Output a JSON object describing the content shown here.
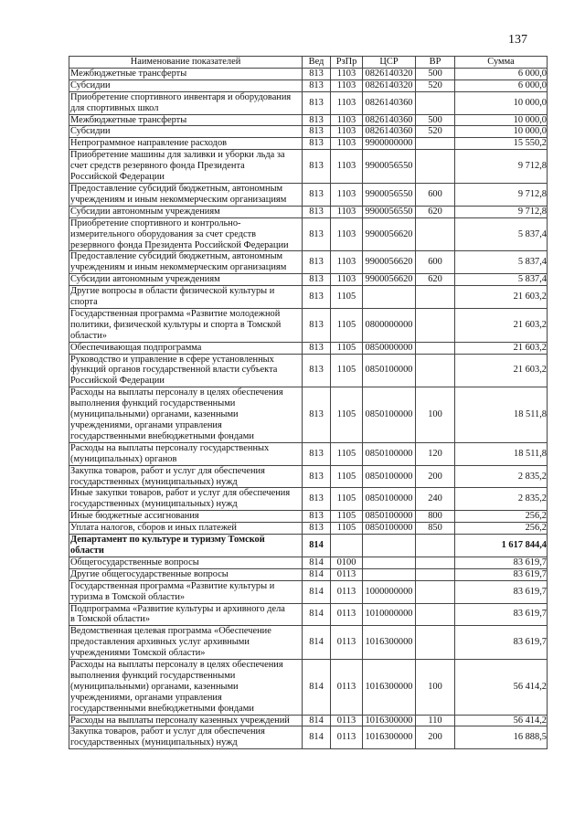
{
  "page_number": "137",
  "headers": [
    "Наименование показателей",
    "Вед",
    "РзПр",
    "ЦСР",
    "ВР",
    "Сумма"
  ],
  "rows": [
    {
      "name": "Межбюджетные трансферты",
      "ved": "813",
      "rz": "1103",
      "csr": "0826140320",
      "vr": "500",
      "sum": "6 000,0"
    },
    {
      "name": "Субсидии",
      "ved": "813",
      "rz": "1103",
      "csr": "0826140320",
      "vr": "520",
      "sum": "6 000,0"
    },
    {
      "name": "Приобретение спортивного инвентаря и оборудования\nдля спортивных школ",
      "ved": "813",
      "rz": "1103",
      "csr": "0826140360",
      "vr": "",
      "sum": "10 000,0"
    },
    {
      "name": "Межбюджетные трансферты",
      "ved": "813",
      "rz": "1103",
      "csr": "0826140360",
      "vr": "500",
      "sum": "10 000,0"
    },
    {
      "name": "Субсидии",
      "ved": "813",
      "rz": "1103",
      "csr": "0826140360",
      "vr": "520",
      "sum": "10 000,0"
    },
    {
      "name": "Непрограммное направление расходов",
      "ved": "813",
      "rz": "1103",
      "csr": "9900000000",
      "vr": "",
      "sum": "15 550,2"
    },
    {
      "name": "Приобретение машины для заливки и уборки льда за\nсчет средств резервного фонда Президента\nРоссийской Федерации",
      "ved": "813",
      "rz": "1103",
      "csr": "9900056550",
      "vr": "",
      "sum": "9 712,8"
    },
    {
      "name": "Предоставление субсидий бюджетным, автономным\nучреждениям и иным некоммерческим организациям",
      "ved": "813",
      "rz": "1103",
      "csr": "9900056550",
      "vr": "600",
      "sum": "9 712,8"
    },
    {
      "name": "Субсидии автономным учреждениям",
      "ved": "813",
      "rz": "1103",
      "csr": "9900056550",
      "vr": "620",
      "sum": "9 712,8"
    },
    {
      "name": "Приобретение спортивного и контрольно-\nизмерительного оборудования за счет средств\nрезервного фонда Президента Российской Федерации",
      "ved": "813",
      "rz": "1103",
      "csr": "9900056620",
      "vr": "",
      "sum": "5 837,4"
    },
    {
      "name": "Предоставление субсидий бюджетным, автономным\nучреждениям и иным некоммерческим организациям",
      "ved": "813",
      "rz": "1103",
      "csr": "9900056620",
      "vr": "600",
      "sum": "5 837,4"
    },
    {
      "name": "Субсидии автономным учреждениям",
      "ved": "813",
      "rz": "1103",
      "csr": "9900056620",
      "vr": "620",
      "sum": "5 837,4"
    },
    {
      "name": "Другие вопросы в области физической культуры и\nспорта",
      "ved": "813",
      "rz": "1105",
      "csr": "",
      "vr": "",
      "sum": "21 603,2"
    },
    {
      "name": "Государственная программа «Развитие молодежной\nполитики, физической культуры и спорта в Томской\nобласти»",
      "ved": "813",
      "rz": "1105",
      "csr": "0800000000",
      "vr": "",
      "sum": "21 603,2"
    },
    {
      "name": "Обеспечивающая подпрограмма",
      "ved": "813",
      "rz": "1105",
      "csr": "0850000000",
      "vr": "",
      "sum": "21 603,2"
    },
    {
      "name": "Руководство и управление в сфере установленных\nфункций органов государственной власти субъекта\nРоссийской Федерации",
      "ved": "813",
      "rz": "1105",
      "csr": "0850100000",
      "vr": "",
      "sum": "21 603,2"
    },
    {
      "name": "Расходы на выплаты персоналу в целях обеспечения\nвыполнения функций государственными\n(муниципальными) органами, казенными\nучреждениями, органами управления\nгосударственными внебюджетными фондами",
      "ved": "813",
      "rz": "1105",
      "csr": "0850100000",
      "vr": "100",
      "sum": "18 511,8"
    },
    {
      "name": "Расходы на выплаты персоналу государственных\n(муниципальных) органов",
      "ved": "813",
      "rz": "1105",
      "csr": "0850100000",
      "vr": "120",
      "sum": "18 511,8"
    },
    {
      "name": "Закупка товаров, работ и услуг для обеспечения\nгосударственных (муниципальных) нужд",
      "ved": "813",
      "rz": "1105",
      "csr": "0850100000",
      "vr": "200",
      "sum": "2 835,2"
    },
    {
      "name": "Иные закупки товаров, работ и услуг для обеспечения\nгосударственных (муниципальных) нужд",
      "ved": "813",
      "rz": "1105",
      "csr": "0850100000",
      "vr": "240",
      "sum": "2 835,2"
    },
    {
      "name": "Иные бюджетные ассигнования",
      "ved": "813",
      "rz": "1105",
      "csr": "0850100000",
      "vr": "800",
      "sum": "256,2"
    },
    {
      "name": "Уплата налогов, сборов и иных платежей",
      "ved": "813",
      "rz": "1105",
      "csr": "0850100000",
      "vr": "850",
      "sum": "256,2"
    },
    {
      "name": "Департамент по культуре и туризму Томской\nобласти",
      "ved": "814",
      "rz": "",
      "csr": "",
      "vr": "",
      "sum": "1 617 844,4",
      "bold": true
    },
    {
      "name": "Общегосударственные вопросы",
      "ved": "814",
      "rz": "0100",
      "csr": "",
      "vr": "",
      "sum": "83 619,7"
    },
    {
      "name": "Другие общегосударственные вопросы",
      "ved": "814",
      "rz": "0113",
      "csr": "",
      "vr": "",
      "sum": "83 619,7"
    },
    {
      "name": "Государственная программа «Развитие культуры и\nтуризма в Томской области»",
      "ved": "814",
      "rz": "0113",
      "csr": "1000000000",
      "vr": "",
      "sum": "83 619,7"
    },
    {
      "name": "Подпрограмма «Развитие культуры и архивного дела\nв Томской области»",
      "ved": "814",
      "rz": "0113",
      "csr": "1010000000",
      "vr": "",
      "sum": "83 619,7"
    },
    {
      "name": "Ведомственная целевая программа «Обеспечение\nпредоставления архивных услуг архивными\nучреждениями Томской области»",
      "ved": "814",
      "rz": "0113",
      "csr": "1016300000",
      "vr": "",
      "sum": "83 619,7"
    },
    {
      "name": "Расходы на выплаты персоналу в целях обеспечения\nвыполнения функций государственными\n(муниципальными) органами, казенными\nучреждениями, органами управления\nгосударственными внебюджетными фондами",
      "ved": "814",
      "rz": "0113",
      "csr": "1016300000",
      "vr": "100",
      "sum": "56 414,2"
    },
    {
      "name": "Расходы на выплаты персоналу казенных учреждений",
      "ved": "814",
      "rz": "0113",
      "csr": "1016300000",
      "vr": "110",
      "sum": "56 414,2"
    },
    {
      "name": "Закупка товаров, работ и услуг для обеспечения\nгосударственных (муниципальных) нужд",
      "ved": "814",
      "rz": "0113",
      "csr": "1016300000",
      "vr": "200",
      "sum": "16 888,5"
    }
  ]
}
